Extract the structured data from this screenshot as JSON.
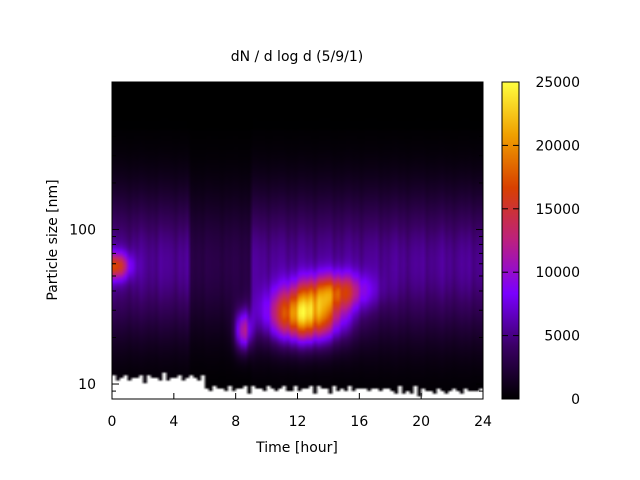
{
  "chart_data": {
    "type": "heatmap",
    "title": "dN / d log d (5/9/1)",
    "xlabel": "Time [hour]",
    "ylabel": "Particle size [nm]",
    "x_ticks": [
      "0",
      "4",
      "8",
      "12",
      "16",
      "20",
      "24"
    ],
    "y_ticks": [
      "10",
      "100"
    ],
    "xlim": [
      0,
      24
    ],
    "ylim": [
      8,
      900
    ],
    "y_scale": "log",
    "colorbar": {
      "ticks": [
        "0",
        "5000",
        "10000",
        "15000",
        "20000",
        "25000"
      ],
      "range": [
        0,
        25000
      ],
      "colors": [
        "#000000",
        "#3a0064",
        "#7a00ff",
        "#bc2080",
        "#d84000",
        "#f0a000",
        "#ffff40"
      ]
    },
    "features": {
      "mode_diameter_nm": 60,
      "background_max": 6000,
      "morning_peak": {
        "x": 8.5,
        "y": 22,
        "value": 12000
      },
      "midday_burst": {
        "x": 12.5,
        "y": 28,
        "value": 22000
      },
      "early_mode": {
        "x": 0.3,
        "y": 58,
        "value": 12000
      }
    }
  }
}
